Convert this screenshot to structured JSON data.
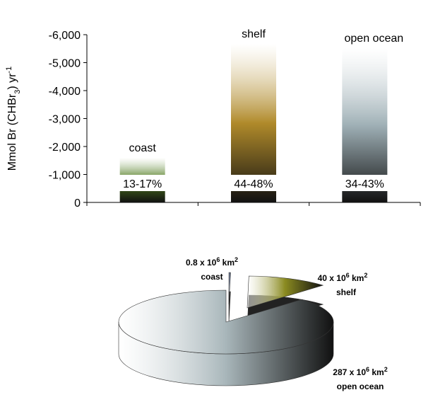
{
  "chart_data": [
    {
      "type": "bar",
      "ylabel": [
        "Mmol Br (CHBr",
        "3",
        ") yr",
        "-1"
      ],
      "categories": [
        "coast",
        "shelf",
        "open ocean"
      ],
      "values": [
        -1600,
        -5670,
        -5520
      ],
      "annotations": [
        "13-17%",
        "44-48%",
        "34-43%"
      ],
      "colors": [
        "#4f7a1e",
        "#b08a2a",
        "#9fb0b6"
      ],
      "ylim": [
        0,
        -6000
      ],
      "yticks": [
        0,
        {
          "value": -1000,
          "label": "-1,000"
        },
        {
          "value": -2000,
          "label": "-2,000"
        },
        {
          "value": -3000,
          "label": "-3,000"
        },
        {
          "value": -4000,
          "label": "-4,000"
        },
        {
          "value": -5000,
          "label": "-5,000"
        },
        {
          "value": -6000,
          "label": "-6,000"
        }
      ]
    },
    {
      "type": "pie",
      "categories": [
        "coast",
        "shelf",
        "open ocean"
      ],
      "values": [
        0.8,
        40,
        287
      ],
      "value_labels": [
        [
          "0.8 x 10",
          "6",
          " km",
          "2"
        ],
        [
          "40 x 10",
          "6",
          " km",
          "2"
        ],
        [
          "287 x 10",
          "6",
          " km",
          "2"
        ]
      ],
      "colors": [
        "#3a4f7a",
        "#8a8a20",
        "#a8b6ba"
      ]
    }
  ]
}
